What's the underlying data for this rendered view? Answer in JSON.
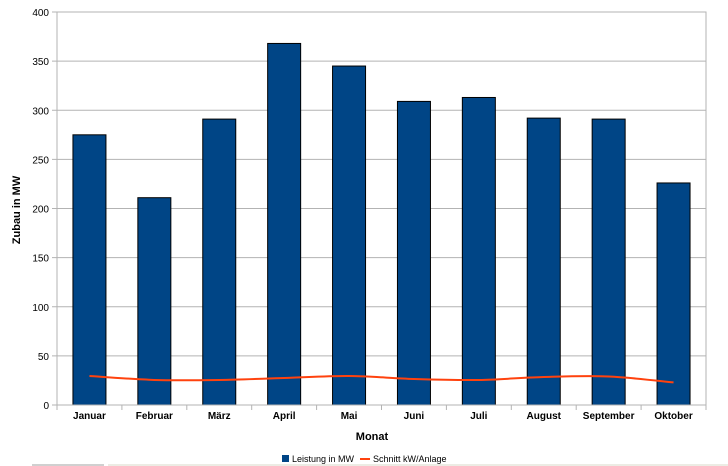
{
  "chart_data": {
    "type": "bar",
    "categories": [
      "Januar",
      "Februar",
      "März",
      "April",
      "Mai",
      "Juni",
      "Juli",
      "August",
      "September",
      "Oktober"
    ],
    "series": [
      {
        "name": "Leistung in MW",
        "type": "bar",
        "color": "#004586",
        "values": [
          275,
          211,
          291,
          368,
          345,
          309,
          313,
          292,
          291,
          226
        ]
      },
      {
        "name": "Schnitt kW/Anlage",
        "type": "line",
        "color": "#ff420e",
        "values": [
          29.5,
          25.5,
          25.5,
          27.5,
          29.5,
          26.5,
          25.5,
          28.5,
          29,
          23
        ]
      }
    ],
    "title": "",
    "xlabel": "Monat",
    "ylabel": "Zubau in MW",
    "ylim": [
      0,
      400
    ],
    "yticks": [
      0,
      50,
      100,
      150,
      200,
      250,
      300,
      350,
      400
    ],
    "grid": true,
    "legend_position": "bottom"
  }
}
